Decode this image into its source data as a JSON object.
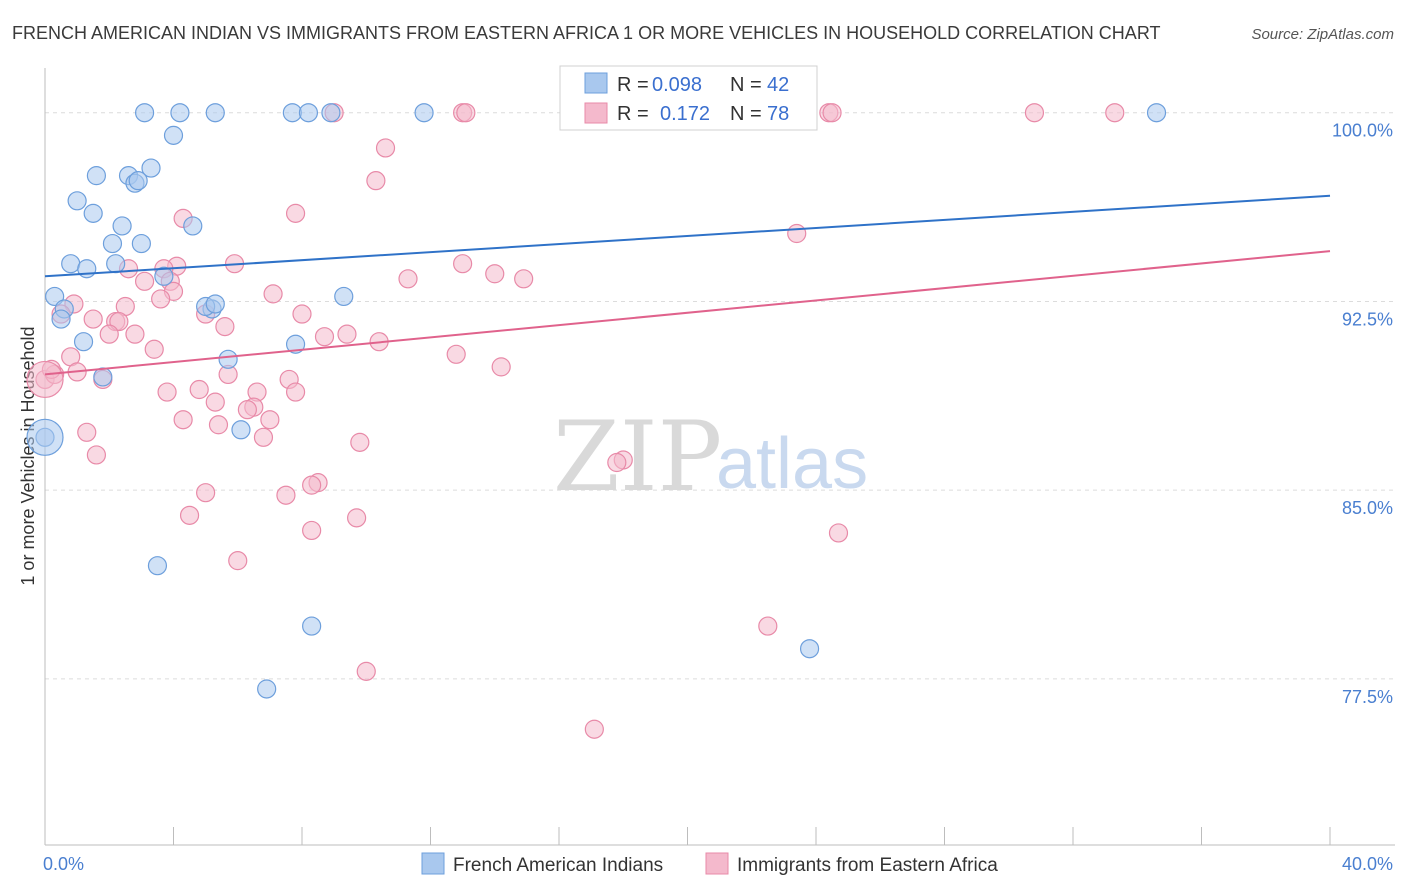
{
  "title": "FRENCH AMERICAN INDIAN VS IMMIGRANTS FROM EASTERN AFRICA 1 OR MORE VEHICLES IN HOUSEHOLD CORRELATION CHART",
  "source": "Source: ZipAtlas.com",
  "watermark": {
    "zip": "ZIP",
    "atlas": "atlas"
  },
  "legend": {
    "r_label": "R =",
    "n_label": "N =",
    "series": [
      {
        "r": "0.098",
        "n": "42"
      },
      {
        "r": "0.172",
        "n": "78"
      }
    ]
  },
  "colors": {
    "blue_fill": "#a9c8ee",
    "blue_stroke": "#6d9fdc",
    "blue_line": "#2f72c8",
    "pink_fill": "#f4b9cc",
    "pink_stroke": "#e88aa8",
    "pink_line": "#e0628c"
  },
  "chart_data": {
    "type": "scatter",
    "title": "FRENCH AMERICAN INDIAN VS IMMIGRANTS FROM EASTERN AFRICA 1 OR MORE VEHICLES IN HOUSEHOLD CORRELATION CHART",
    "xlabel": "",
    "ylabel": "1 or more Vehicles in Household",
    "xlim": [
      0,
      40
    ],
    "ylim": [
      70.9,
      101.3
    ],
    "x_tick_labels": [
      "0.0%",
      "40.0%"
    ],
    "y_ticks": [
      {
        "value": 100.0,
        "label": "100.0%"
      },
      {
        "value": 92.5,
        "label": "92.5%"
      },
      {
        "value": 85.0,
        "label": "85.0%"
      },
      {
        "value": 77.5,
        "label": "77.5%"
      }
    ],
    "grid": true,
    "series": [
      {
        "name": "French American Indians",
        "color": "blue",
        "trend": {
          "x": [
            0,
            40
          ],
          "y": [
            93.5,
            96.7
          ]
        },
        "points": [
          [
            3.1,
            100
          ],
          [
            4.2,
            100
          ],
          [
            5.3,
            100
          ],
          [
            7.7,
            100
          ],
          [
            8.2,
            100
          ],
          [
            8.9,
            100
          ],
          [
            11.8,
            100
          ],
          [
            16.8,
            100
          ],
          [
            34.6,
            100
          ],
          [
            4.0,
            99.1
          ],
          [
            3.3,
            97.8
          ],
          [
            1.6,
            97.5
          ],
          [
            2.6,
            97.5
          ],
          [
            2.8,
            97.2
          ],
          [
            1.0,
            96.5
          ],
          [
            1.5,
            96.0
          ],
          [
            2.4,
            95.5
          ],
          [
            4.6,
            95.5
          ],
          [
            2.1,
            94.8
          ],
          [
            3.0,
            94.8
          ],
          [
            0.8,
            94.0
          ],
          [
            1.3,
            93.8
          ],
          [
            2.2,
            94.0
          ],
          [
            3.7,
            93.5
          ],
          [
            0.3,
            92.7
          ],
          [
            0.6,
            92.2
          ],
          [
            5.2,
            92.2
          ],
          [
            5.0,
            92.3
          ],
          [
            9.3,
            92.7
          ],
          [
            0.5,
            91.8
          ],
          [
            1.2,
            90.9
          ],
          [
            7.8,
            90.8
          ],
          [
            5.7,
            90.2
          ],
          [
            1.8,
            89.5
          ],
          [
            0.0,
            87.1
          ],
          [
            6.1,
            87.4
          ],
          [
            3.5,
            82.0
          ],
          [
            8.3,
            79.6
          ],
          [
            23.8,
            78.7
          ],
          [
            6.9,
            77.1
          ],
          [
            5.3,
            92.4
          ],
          [
            2.9,
            97.3
          ]
        ],
        "large_points": [
          [
            0.0,
            87.1
          ]
        ]
      },
      {
        "name": "Immigrants from Eastern Africa",
        "color": "pink",
        "trend": {
          "x": [
            0,
            40
          ],
          "y": [
            89.6,
            94.5
          ]
        },
        "points": [
          [
            9.0,
            100
          ],
          [
            13.0,
            100
          ],
          [
            13.1,
            100
          ],
          [
            24.4,
            100
          ],
          [
            24.5,
            100
          ],
          [
            30.8,
            100
          ],
          [
            33.3,
            100
          ],
          [
            10.6,
            98.6
          ],
          [
            10.3,
            97.3
          ],
          [
            7.8,
            96.0
          ],
          [
            4.3,
            95.8
          ],
          [
            23.4,
            95.2
          ],
          [
            5.9,
            94.0
          ],
          [
            13.0,
            94.0
          ],
          [
            4.1,
            93.9
          ],
          [
            2.6,
            93.8
          ],
          [
            3.7,
            93.8
          ],
          [
            14.0,
            93.6
          ],
          [
            11.3,
            93.4
          ],
          [
            14.9,
            93.4
          ],
          [
            3.1,
            93.3
          ],
          [
            3.9,
            93.3
          ],
          [
            4.0,
            92.9
          ],
          [
            7.1,
            92.8
          ],
          [
            0.9,
            92.4
          ],
          [
            2.5,
            92.3
          ],
          [
            3.6,
            92.6
          ],
          [
            0.5,
            92.0
          ],
          [
            1.5,
            91.8
          ],
          [
            2.2,
            91.7
          ],
          [
            2.3,
            91.7
          ],
          [
            5.0,
            92.0
          ],
          [
            8.0,
            92.0
          ],
          [
            5.6,
            91.5
          ],
          [
            2.0,
            91.2
          ],
          [
            2.8,
            91.2
          ],
          [
            8.7,
            91.1
          ],
          [
            9.4,
            91.2
          ],
          [
            10.4,
            90.9
          ],
          [
            3.4,
            90.6
          ],
          [
            0.8,
            90.3
          ],
          [
            12.8,
            90.4
          ],
          [
            14.2,
            89.9
          ],
          [
            1.0,
            89.7
          ],
          [
            5.7,
            89.6
          ],
          [
            1.8,
            89.4
          ],
          [
            7.6,
            89.4
          ],
          [
            4.8,
            89.0
          ],
          [
            3.8,
            88.9
          ],
          [
            6.6,
            88.9
          ],
          [
            7.8,
            88.9
          ],
          [
            5.3,
            88.5
          ],
          [
            6.5,
            88.3
          ],
          [
            6.3,
            88.2
          ],
          [
            7.0,
            87.8
          ],
          [
            4.3,
            87.8
          ],
          [
            1.3,
            87.3
          ],
          [
            5.4,
            87.6
          ],
          [
            6.8,
            87.1
          ],
          [
            9.8,
            86.9
          ],
          [
            1.6,
            86.4
          ],
          [
            18.0,
            86.2
          ],
          [
            17.8,
            86.1
          ],
          [
            8.5,
            85.3
          ],
          [
            8.3,
            85.2
          ],
          [
            5.0,
            84.9
          ],
          [
            7.5,
            84.8
          ],
          [
            4.5,
            84.0
          ],
          [
            9.7,
            83.9
          ],
          [
            8.3,
            83.4
          ],
          [
            24.7,
            83.3
          ],
          [
            6.0,
            82.2
          ],
          [
            22.5,
            79.6
          ],
          [
            10.0,
            77.8
          ],
          [
            17.1,
            75.5
          ],
          [
            0.0,
            89.4
          ],
          [
            0.3,
            89.6
          ],
          [
            0.2,
            89.8
          ]
        ],
        "large_points": [
          [
            0.0,
            89.4
          ]
        ]
      }
    ]
  },
  "bottom_legend": [
    "French American Indians",
    "Immigrants from Eastern Africa"
  ]
}
